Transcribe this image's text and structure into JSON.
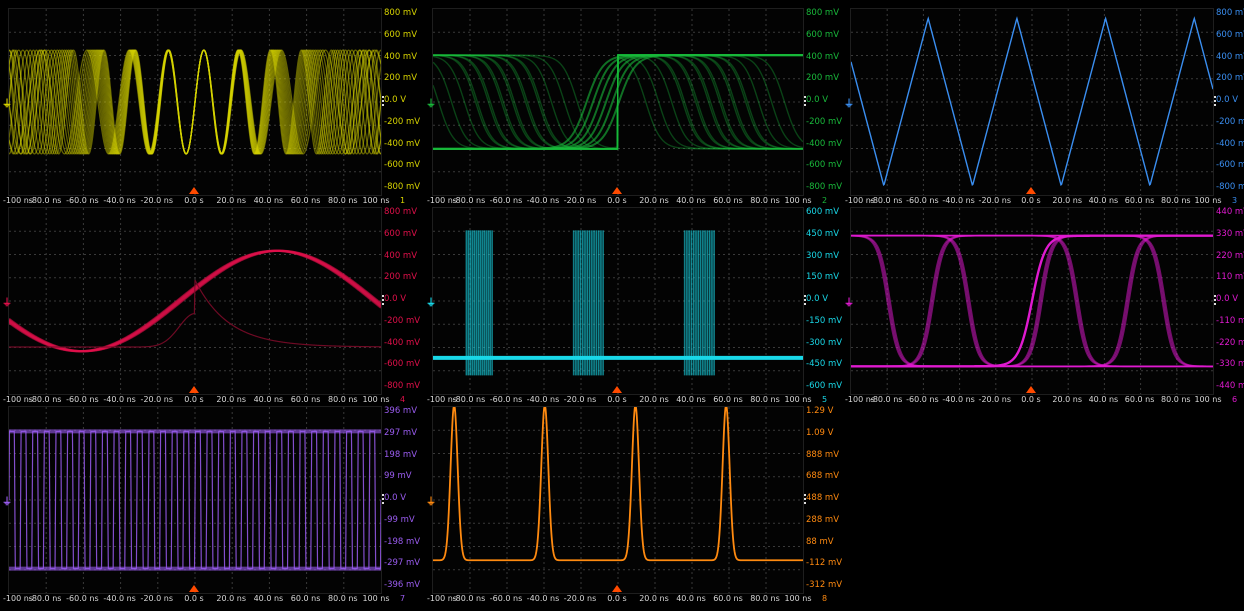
{
  "x_axis_labels": [
    "-100 ns",
    "-80.0 ns",
    "-60.0 ns",
    "-40.0 ns",
    "-20.0 ns",
    "0.0 s",
    "20.0 ns",
    "40.0 ns",
    "60.0 ns",
    "80.0 ns",
    "100 ns"
  ],
  "channels": [
    {
      "num": "1",
      "color": "#d8d400",
      "y_labels": [
        "800 mV",
        "600 mV",
        "400 mV",
        "200 mV",
        "0.0 V",
        "-200 mV",
        "-400 mV",
        "-600 mV",
        "-800 mV"
      ]
    },
    {
      "num": "2",
      "color": "#19b93b",
      "y_labels": [
        "800 mV",
        "600 mV",
        "400 mV",
        "200 mV",
        "0.0 V",
        "-200 mV",
        "-400 mV",
        "-600 mV",
        "-800 mV"
      ]
    },
    {
      "num": "3",
      "color": "#3a8ef0",
      "y_labels": [
        "800 mV",
        "600 mV",
        "400 mV",
        "200 mV",
        "0.0 V",
        "-200 mV",
        "-400 mV",
        "-600 mV",
        "-800 mV"
      ]
    },
    {
      "num": "4",
      "color": "#e0104a",
      "y_labels": [
        "800 mV",
        "600 mV",
        "400 mV",
        "200 mV",
        "0.0 V",
        "-200 mV",
        "-400 mV",
        "-600 mV",
        "-800 mV"
      ]
    },
    {
      "num": "5",
      "color": "#19d8e8",
      "y_labels": [
        "600 mV",
        "450 mV",
        "300 mV",
        "150 mV",
        "0.0 V",
        "-150 mV",
        "-300 mV",
        "-450 mV",
        "-600 mV"
      ]
    },
    {
      "num": "6",
      "color": "#e01ad0",
      "y_labels": [
        "440 mV",
        "330 mV",
        "220 mV",
        "110 mV",
        "0.0 V",
        "-110 mV",
        "-220 mV",
        "-330 mV",
        "-440 mV"
      ]
    },
    {
      "num": "7",
      "color": "#9a5cf0",
      "y_labels": [
        "396 mV",
        "297 mV",
        "198 mV",
        "99 mV",
        "0.0 V",
        "-99 mV",
        "-198 mV",
        "-297 mV",
        "-396 mV"
      ]
    },
    {
      "num": "8",
      "color": "#ff8a10",
      "y_labels": [
        "1.29 V",
        "1.09 V",
        "888 mV",
        "688 mV",
        "488 mV",
        "288 mV",
        "88 mV",
        "-112 mV",
        "-312 mV"
      ]
    }
  ],
  "trigger_marker_color": "#ff4a00"
}
